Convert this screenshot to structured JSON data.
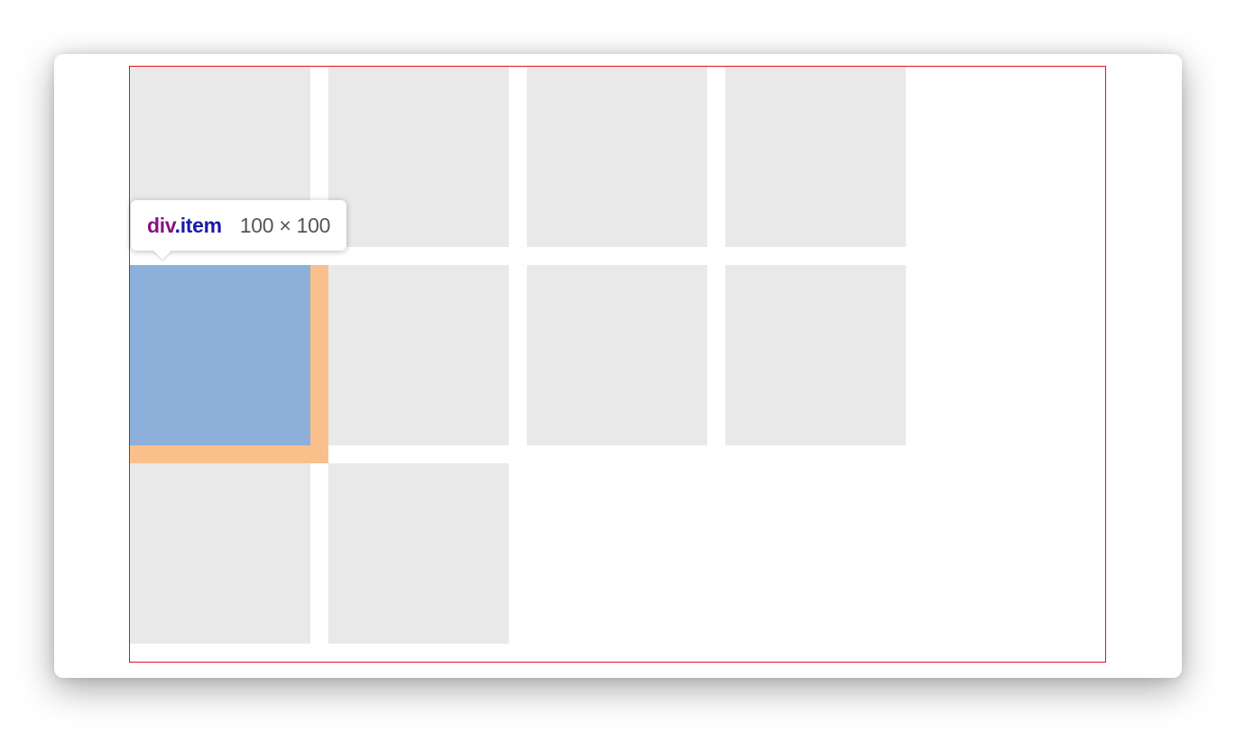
{
  "tooltip": {
    "tag": "div",
    "class": ".item",
    "dimensions": "100 × 100"
  },
  "colors": {
    "container_outline": "#e3101c",
    "item_fill": "#e9e9e9",
    "highlight_content": "#8cb0da",
    "highlight_margin": "#f9c08c",
    "tag_color": "#881280",
    "class_color": "#1a1aa6"
  }
}
